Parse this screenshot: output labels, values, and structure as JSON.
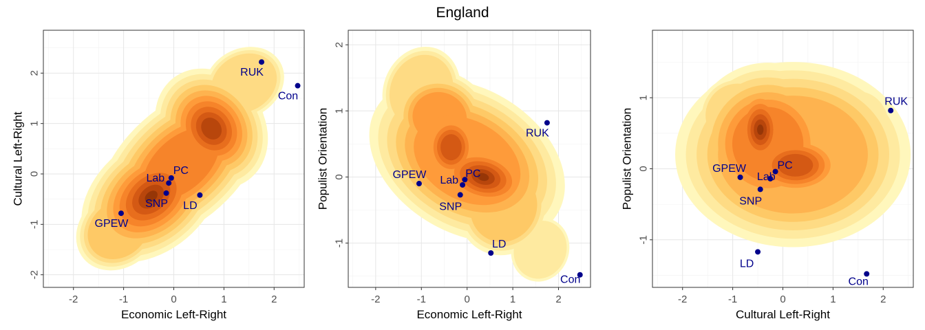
{
  "title": "England",
  "colors": {
    "point": "#00008b",
    "density": [
      "#fff7bc",
      "#feeaa0",
      "#fedb84",
      "#fec966",
      "#feb34f",
      "#fe9b3a",
      "#f6842a",
      "#e86e1d",
      "#d45914",
      "#b8460c",
      "#963607"
    ]
  },
  "chart_data": [
    {
      "type": "scatter",
      "xlabel": "Economic Left-Right",
      "ylabel": "Cultural Left-Right",
      "xlim": [
        -2.6,
        2.6
      ],
      "ylim": [
        -2.25,
        2.85
      ],
      "xticks": [
        -2,
        -1,
        0,
        1,
        2
      ],
      "yticks": [
        -2,
        -1,
        0,
        1,
        2
      ],
      "grid": true,
      "background": "filled density contours",
      "points": [
        {
          "label": "RUK",
          "x": 1.75,
          "y": 2.22
        },
        {
          "label": "Con",
          "x": 2.47,
          "y": 1.75
        },
        {
          "label": "PC",
          "x": -0.05,
          "y": -0.08
        },
        {
          "label": "Lab",
          "x": -0.1,
          "y": -0.18
        },
        {
          "label": "SNP",
          "x": -0.15,
          "y": -0.38
        },
        {
          "label": "LD",
          "x": 0.52,
          "y": -0.42
        },
        {
          "label": "GPEW",
          "x": -1.05,
          "y": -0.78
        }
      ]
    },
    {
      "type": "scatter",
      "xlabel": "Economic Left-Right",
      "ylabel": "Populist Orientation",
      "xlim": [
        -2.6,
        2.7
      ],
      "ylim": [
        -1.67,
        2.22
      ],
      "xticks": [
        -2,
        -1,
        0,
        1,
        2
      ],
      "yticks": [
        -1,
        0,
        1,
        2
      ],
      "grid": true,
      "background": "filled density contours",
      "points": [
        {
          "label": "RUK",
          "x": 1.75,
          "y": 0.82
        },
        {
          "label": "GPEW",
          "x": -1.05,
          "y": -0.1
        },
        {
          "label": "PC",
          "x": -0.05,
          "y": -0.04
        },
        {
          "label": "Lab",
          "x": -0.1,
          "y": -0.12
        },
        {
          "label": "SNP",
          "x": -0.15,
          "y": -0.27
        },
        {
          "label": "LD",
          "x": 0.52,
          "y": -1.15
        },
        {
          "label": "Con",
          "x": 2.47,
          "y": -1.48
        }
      ]
    },
    {
      "type": "scatter",
      "xlabel": "Cultural Left-Right",
      "ylabel": "Populist Orientation",
      "xlim": [
        -2.6,
        2.6
      ],
      "ylim": [
        -1.67,
        1.95
      ],
      "xticks": [
        -2,
        -1,
        0,
        1,
        2
      ],
      "yticks": [
        -1,
        0,
        1
      ],
      "grid": true,
      "background": "filled density contours",
      "points": [
        {
          "label": "RUK",
          "x": 2.15,
          "y": 0.82
        },
        {
          "label": "GPEW",
          "x": -0.85,
          "y": -0.12
        },
        {
          "label": "PC",
          "x": -0.15,
          "y": -0.04
        },
        {
          "label": "Lab",
          "x": -0.25,
          "y": -0.14
        },
        {
          "label": "SNP",
          "x": -0.45,
          "y": -0.29
        },
        {
          "label": "LD",
          "x": -0.5,
          "y": -1.17
        },
        {
          "label": "Con",
          "x": 1.67,
          "y": -1.48
        }
      ]
    }
  ]
}
